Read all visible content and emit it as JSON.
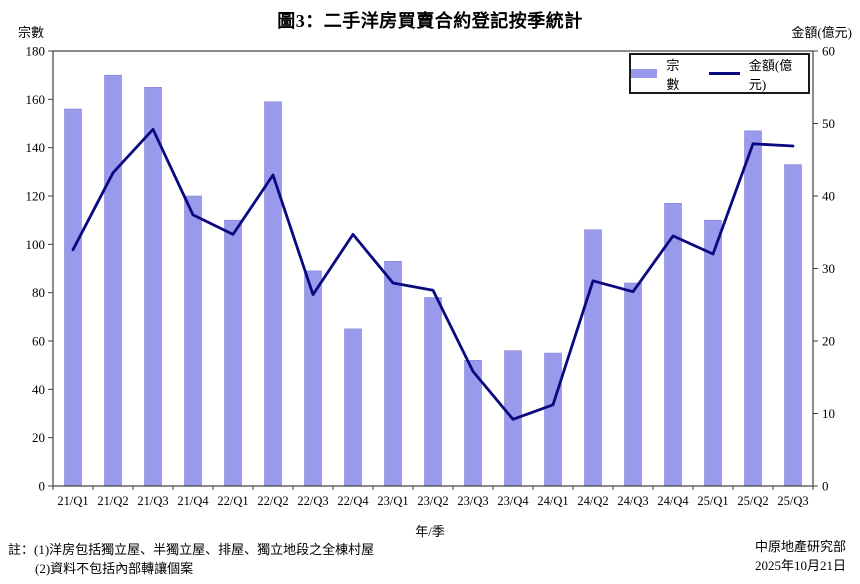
{
  "title": "圖3：二手洋房買賣合約登記按季統計",
  "legend": {
    "bars_label": "宗數",
    "line_label": "金額(億元)"
  },
  "left_axis": {
    "title": "宗數",
    "min": 0,
    "max": 180,
    "step": 20
  },
  "right_axis": {
    "title": "金額(億元)",
    "min": 0,
    "max": 60,
    "step": 10
  },
  "x_axis": {
    "title": "年/季"
  },
  "notes": [
    "註：(1)洋房包括獨立屋、半獨立屋、排屋、獨立地段之全棟村屋",
    "(2)資料不包括內部轉讓個案"
  ],
  "source": {
    "organization": "中原地產研究部",
    "date": "2025年10月21日"
  },
  "colors": {
    "bar": "#9a9aec",
    "bar_border": "#8585d8",
    "line": "#0a0a80",
    "axis": "#404040",
    "text": "#000000"
  },
  "chart_data": {
    "type": "bar",
    "subtype": "bar-and-line-dual-axis",
    "title": "圖3：二手洋房買賣合約登記按季統計",
    "xlabel": "年/季",
    "ylabel_left": "宗數",
    "ylabel_right": "金額(億元)",
    "ylim_left": [
      0,
      180
    ],
    "ylim_right": [
      0,
      60
    ],
    "grid": false,
    "legend_position": "top-right-inside",
    "categories": [
      "21/Q1",
      "21/Q2",
      "21/Q3",
      "21/Q4",
      "22/Q1",
      "22/Q2",
      "22/Q3",
      "22/Q4",
      "23/Q1",
      "23/Q2",
      "23/Q3",
      "23/Q4",
      "24/Q1",
      "24/Q2",
      "24/Q3",
      "24/Q4",
      "25/Q1",
      "25/Q2",
      "25/Q3"
    ],
    "series": [
      {
        "name": "宗數",
        "type": "bar",
        "axis": "left",
        "values": [
          156,
          170,
          165,
          120,
          110,
          159,
          89,
          65,
          93,
          78,
          52,
          56,
          55,
          106,
          84,
          117,
          110,
          147,
          133
        ]
      },
      {
        "name": "金額(億元)",
        "type": "line",
        "axis": "right",
        "values": [
          32.6,
          43.2,
          49.2,
          37.4,
          34.7,
          42.9,
          26.4,
          34.7,
          28.0,
          27.0,
          15.8,
          9.2,
          11.2,
          28.3,
          26.8,
          34.5,
          32.0,
          47.2,
          46.9
        ]
      }
    ]
  }
}
